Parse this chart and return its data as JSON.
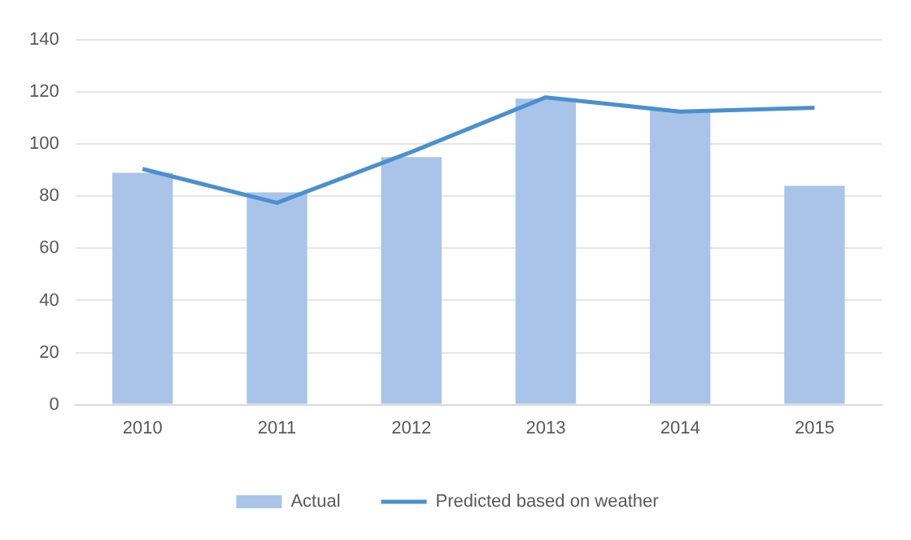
{
  "chart_data": {
    "type": "bar",
    "categories": [
      "2010",
      "2011",
      "2012",
      "2013",
      "2014",
      "2015"
    ],
    "series": [
      {
        "name": "Actual",
        "color": "#a9c4e8",
        "values": [
          89,
          81.5,
          95,
          117.5,
          113,
          84
        ]
      },
      {
        "name": "Predicted based on weather",
        "type": "line",
        "color": "#4a90d0",
        "values": [
          90.5,
          77.5,
          97,
          118,
          112.5,
          114
        ]
      }
    ],
    "ylim": [
      0,
      140
    ],
    "yticks": [
      0,
      20,
      40,
      60,
      80,
      100,
      120,
      140
    ],
    "grid": "y",
    "legend": "bottom",
    "marker": "none"
  }
}
